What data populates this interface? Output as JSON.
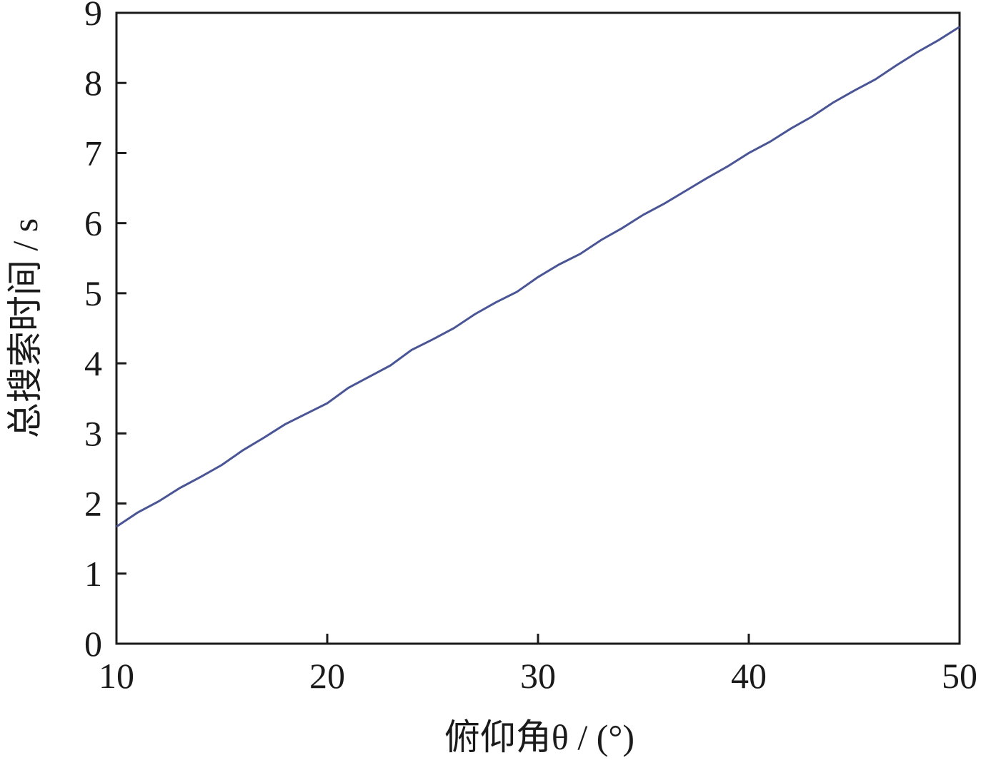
{
  "chart_data": {
    "type": "line",
    "x_label": "俯仰角θ / (°)",
    "y_label": "总搜索时间 / s",
    "x": [
      10,
      11,
      12,
      13,
      14,
      15,
      16,
      17,
      18,
      19,
      20,
      21,
      22,
      23,
      24,
      25,
      26,
      27,
      28,
      29,
      30,
      31,
      32,
      33,
      34,
      35,
      36,
      37,
      38,
      39,
      40,
      41,
      42,
      43,
      44,
      45,
      46,
      47,
      48,
      49,
      50
    ],
    "series": [
      {
        "color": "#4a5596",
        "values": [
          1.67,
          1.87,
          2.03,
          2.22,
          2.38,
          2.55,
          2.76,
          2.94,
          3.13,
          3.28,
          3.43,
          3.65,
          3.81,
          3.97,
          4.19,
          4.34,
          4.5,
          4.7,
          4.87,
          5.02,
          5.23,
          5.41,
          5.56,
          5.76,
          5.93,
          6.12,
          6.28,
          6.46,
          6.64,
          6.81,
          7.0,
          7.16,
          7.35,
          7.52,
          7.72,
          7.89,
          8.05,
          8.25,
          8.44,
          8.61,
          8.8
        ]
      }
    ],
    "xlim": [
      10,
      50
    ],
    "xticks": [
      10,
      20,
      30,
      40,
      50
    ],
    "ylim": [
      0,
      9
    ],
    "yticks": [
      0,
      1,
      2,
      3,
      4,
      5,
      6,
      7,
      8,
      9
    ],
    "grid": false
  }
}
